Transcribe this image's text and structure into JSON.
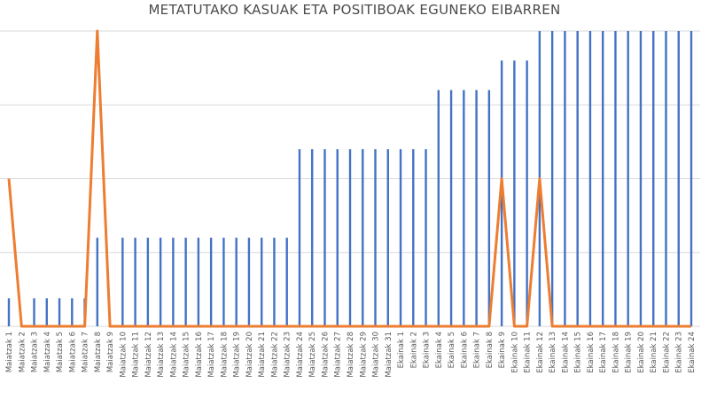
{
  "chart_data": {
    "type": "bar+line",
    "title": "METATUTAKO KASUAK ETA POSITIBOAK EGUNEKO EIBARREN",
    "xlabel": "",
    "ylabel": "",
    "grid": true,
    "legend": "none",
    "ylim": [
      0,
      4
    ],
    "categories": [
      "Maiatzak 1",
      "Maiatzak 2",
      "Maiatzak 3",
      "Maiatzak 4",
      "Maiatzak 5",
      "Maiatzak 6",
      "Maiatzak 7",
      "Maiatzak 8",
      "Maiatzak 9",
      "Maiatzak 10",
      "Maiatzak 11",
      "Maiatzak 12",
      "Maiatzak 13",
      "Maiatzak 14",
      "Maiatzak 15",
      "Maiatzak 16",
      "Maiatzak 17",
      "Maiatzak 18",
      "Maiatzak 19",
      "Maiatzak 20",
      "Maiatzak 21",
      "Maiatzak 22",
      "Maiatzak 23",
      "Maiatzak 24",
      "Maiatzak 25",
      "Maiatzak 26",
      "Maiatzak 27",
      "Maiatzak 28",
      "Maiatzak 29",
      "Maiatzak 30",
      "Maiatzak 31",
      "Ekainak 1",
      "Ekainak 2",
      "Ekainak 3",
      "Ekainak 4",
      "Ekainak 5",
      "Ekainak 6",
      "Ekainak 7",
      "Ekainak 8",
      "Ekainak 9",
      "Ekainak 10",
      "Ekainak 11",
      "Ekainak 12",
      "Ekainak 13",
      "Ekainak 14",
      "Ekainak 15",
      "Ekainak 16",
      "Ekainak 17",
      "Ekainak 18",
      "Ekainak 19",
      "Ekainak 20",
      "Ekainak 21",
      "Ekainak 22",
      "Ekainak 23",
      "Ekainak 24"
    ],
    "series": [
      {
        "type": "bar",
        "color": "#4472c4",
        "values": [
          0.38,
          0,
          0.38,
          0.38,
          0.38,
          0.38,
          0.38,
          1.2,
          0,
          1.2,
          1.2,
          1.2,
          1.2,
          1.2,
          1.2,
          1.2,
          1.2,
          1.2,
          1.2,
          1.2,
          1.2,
          1.2,
          1.2,
          2.4,
          2.4,
          2.4,
          2.4,
          2.4,
          2.4,
          2.4,
          2.4,
          2.4,
          2.4,
          2.4,
          3.2,
          3.2,
          3.2,
          3.2,
          3.2,
          3.6,
          3.6,
          3.6,
          4,
          4,
          4,
          4,
          4,
          4,
          4,
          4,
          4,
          4,
          4,
          4,
          4
        ]
      },
      {
        "type": "line",
        "color": "#ed7d31",
        "values": [
          2,
          0,
          0,
          0,
          0,
          0,
          0,
          4,
          0,
          0,
          0,
          0,
          0,
          0,
          0,
          0,
          0,
          0,
          0,
          0,
          0,
          0,
          0,
          0,
          0,
          0,
          0,
          0,
          0,
          0,
          0,
          0,
          0,
          0,
          0,
          0,
          0,
          0,
          0,
          2,
          0,
          0,
          2,
          0,
          0,
          0,
          0,
          0,
          0,
          0,
          0,
          0,
          0,
          0,
          0
        ]
      }
    ]
  }
}
